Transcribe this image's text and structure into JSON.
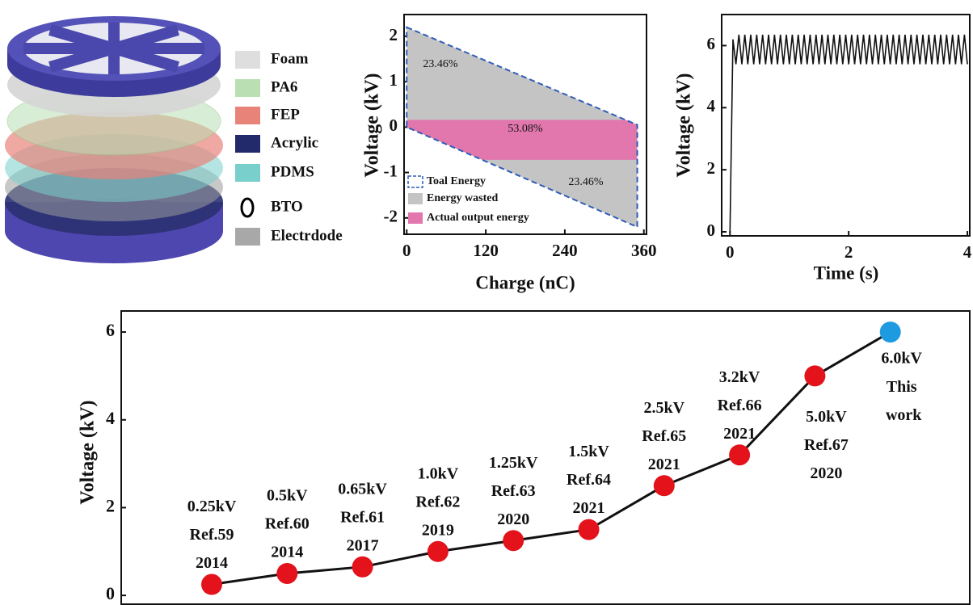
{
  "diagram": {
    "legend": [
      {
        "label": "Foam",
        "color": "#dedede"
      },
      {
        "label": "PA6",
        "color": "#b9dfb3"
      },
      {
        "label": "FEP",
        "color": "#e8837a"
      },
      {
        "label": "Acrylic",
        "color": "#232a6b"
      },
      {
        "label": "PDMS",
        "color": "#79cfcb"
      },
      {
        "label": "BTO",
        "color": "#000000",
        "shape": "ring"
      },
      {
        "label": "Electrdode",
        "color": "#a8a8a8"
      }
    ]
  },
  "chart_data": [
    {
      "type": "area",
      "xlabel": "Charge (nC)",
      "ylabel": "Voltage (kV)",
      "xlim": [
        -4,
        364
      ],
      "xticks": [
        0,
        120,
        240,
        360
      ],
      "ylim": [
        -2.36,
        2.48
      ],
      "yticks": [
        -2,
        -1,
        0,
        1,
        2
      ],
      "series": [
        {
          "name": "Energy wasted",
          "color": "#c4c4c4",
          "x": [
            0,
            350,
            350,
            0
          ],
          "values": [
            2.2,
            0.05,
            -2.2,
            0
          ]
        },
        {
          "name": "Actual output energy",
          "color": "#e277ad",
          "x": [
            0,
            350,
            350,
            0
          ],
          "values": [
            0.16,
            0.16,
            -0.72,
            -0.72
          ]
        },
        {
          "name": "Toal Energy",
          "color": "#2f5db8",
          "dashed": true,
          "x": [
            0,
            350,
            350,
            0
          ],
          "values": [
            2.2,
            0.05,
            -2.2,
            0
          ]
        }
      ],
      "annotations": [
        "23.46%",
        "53.08%",
        "23.46%"
      ]
    },
    {
      "type": "line",
      "xlabel": "Time (s)",
      "ylabel": "Voltage (kV)",
      "xlim": [
        -0.14,
        4.04
      ],
      "xticks": [
        0,
        2,
        4
      ],
      "ylim": [
        -0.13,
        7.0
      ],
      "yticks": [
        0,
        2,
        4,
        6
      ],
      "series": [
        {
          "color": "#111111",
          "x": [
            0,
            0.05,
            0.1,
            0.15,
            0.2,
            0.25,
            0.3,
            0.35,
            0.4,
            0.45,
            0.5,
            0.55,
            0.6,
            0.65,
            0.7,
            0.75,
            0.8,
            0.85,
            0.9,
            0.95,
            1,
            1.05,
            1.1,
            1.15,
            1.2,
            1.25,
            1.3,
            1.35,
            1.4,
            1.45,
            1.5,
            1.55,
            1.6,
            1.65,
            1.7,
            1.75,
            1.8,
            1.85,
            1.9,
            1.95,
            2,
            2.05,
            2.1,
            2.15,
            2.2,
            2.25,
            2.3,
            2.35,
            2.4,
            2.45,
            2.5,
            2.55,
            2.6,
            2.65,
            2.7,
            2.75,
            2.8,
            2.85,
            2.9,
            2.95,
            3,
            3.05,
            3.1,
            3.15,
            3.2,
            3.25,
            3.3,
            3.35,
            3.4,
            3.45,
            3.5,
            3.55,
            3.6,
            3.65,
            3.7,
            3.75,
            3.8,
            3.85,
            3.9,
            3.95,
            4
          ],
          "values": [
            0,
            6.2,
            5.4,
            6.35,
            5.4,
            6.35,
            5.4,
            6.35,
            5.4,
            6.35,
            5.4,
            6.35,
            5.4,
            6.35,
            5.4,
            6.35,
            5.4,
            6.35,
            5.4,
            6.35,
            5.4,
            6.35,
            5.4,
            6.35,
            5.4,
            6.35,
            5.4,
            6.35,
            5.4,
            6.35,
            5.4,
            6.35,
            5.4,
            6.35,
            5.4,
            6.35,
            5.4,
            6.35,
            5.4,
            6.35,
            5.4,
            6.35,
            5.4,
            6.35,
            5.4,
            6.35,
            5.4,
            6.35,
            5.4,
            6.35,
            5.4,
            6.35,
            5.4,
            6.35,
            5.4,
            6.35,
            5.4,
            6.35,
            5.4,
            6.35,
            5.4,
            6.35,
            5.4,
            6.35,
            5.4,
            6.35,
            5.4,
            6.35,
            5.4,
            6.35,
            5.4,
            6.35,
            5.4,
            6.35,
            5.4,
            6.35,
            5.4,
            6.35,
            5.4,
            6.35,
            5.4
          ]
        }
      ]
    },
    {
      "type": "line",
      "ylabel": "Voltage (kV)",
      "ylim": [
        -0.2,
        6.48
      ],
      "yticks": [
        0,
        2,
        4,
        6
      ],
      "values": [
        0.25,
        0.5,
        0.65,
        1.0,
        1.25,
        1.5,
        2.5,
        3.2,
        5.0,
        6.0
      ],
      "value_labels": [
        "0.25kV",
        "0.5kV",
        "0.65kV",
        "1.0kV",
        "1.25kV",
        "1.5kV",
        "2.5kV",
        "3.2kV",
        "5.0kV",
        "6.0kV"
      ],
      "refs": [
        "Ref.59",
        "Ref.60",
        "Ref.61",
        "Ref.62",
        "Ref.63",
        "Ref.64",
        "Ref.65",
        "Ref.66",
        "Ref.67",
        "This work"
      ],
      "years": [
        "2014",
        "2014",
        "2017",
        "2019",
        "2020",
        "2021",
        "2021",
        "2021",
        "2020",
        null
      ],
      "color": "#111111",
      "point_colors": [
        "#e3121b",
        "#e3121b",
        "#e3121b",
        "#e3121b",
        "#e3121b",
        "#e3121b",
        "#e3121b",
        "#e3121b",
        "#e3121b",
        "#1e9be0"
      ]
    }
  ]
}
